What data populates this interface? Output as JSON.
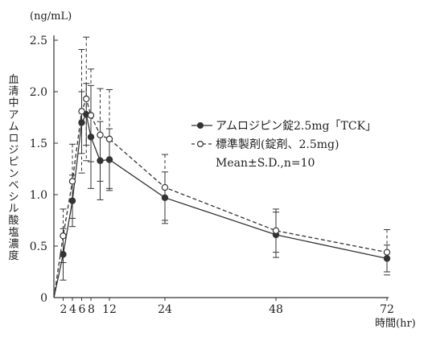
{
  "chart_data": {
    "type": "line",
    "unit_label": "(ng/mL)",
    "ylabel": "血清中アムロジピンベシル酸塩濃度",
    "xlabel": "時間(hr)",
    "xlim": [
      0,
      72
    ],
    "ylim": [
      0,
      2.5
    ],
    "x_ticks": [
      2,
      4,
      6,
      8,
      12,
      24,
      48,
      72
    ],
    "y_ticks": [
      0,
      0.5,
      1.0,
      1.5,
      2.0,
      2.5
    ],
    "y_tick_labels": [
      "0",
      "0.5",
      "1.0",
      "1.5",
      "2.0",
      "2.5"
    ],
    "note": "Mean±S.D.,n=10",
    "series": [
      {
        "name": "アムロジピン錠2.5mg「TCK」",
        "marker": "filled-circle",
        "line_style": "solid",
        "color": "#333333",
        "x": [
          0,
          2,
          4,
          6,
          7,
          8,
          10,
          12,
          24,
          48,
          72
        ],
        "y": [
          0,
          0.42,
          0.94,
          1.7,
          1.78,
          1.56,
          1.33,
          1.34,
          0.97,
          0.61,
          0.38
        ],
        "sd": [
          0,
          0.25,
          0.25,
          0.3,
          0.3,
          0.5,
          0.38,
          0.3,
          0.25,
          0.22,
          0.13
        ]
      },
      {
        "name": "標準製剤(錠剤、2.5mg)",
        "marker": "open-circle",
        "line_style": "dashed",
        "color": "#333333",
        "x": [
          0,
          2,
          4,
          6,
          7,
          8,
          10,
          12,
          24,
          48,
          72
        ],
        "y": [
          0,
          0.6,
          1.13,
          1.81,
          1.93,
          1.77,
          1.58,
          1.54,
          1.07,
          0.65,
          0.44
        ],
        "sd": [
          0,
          0.26,
          0.36,
          0.6,
          0.6,
          0.45,
          0.45,
          0.48,
          0.32,
          0.21,
          0.22
        ]
      }
    ]
  }
}
